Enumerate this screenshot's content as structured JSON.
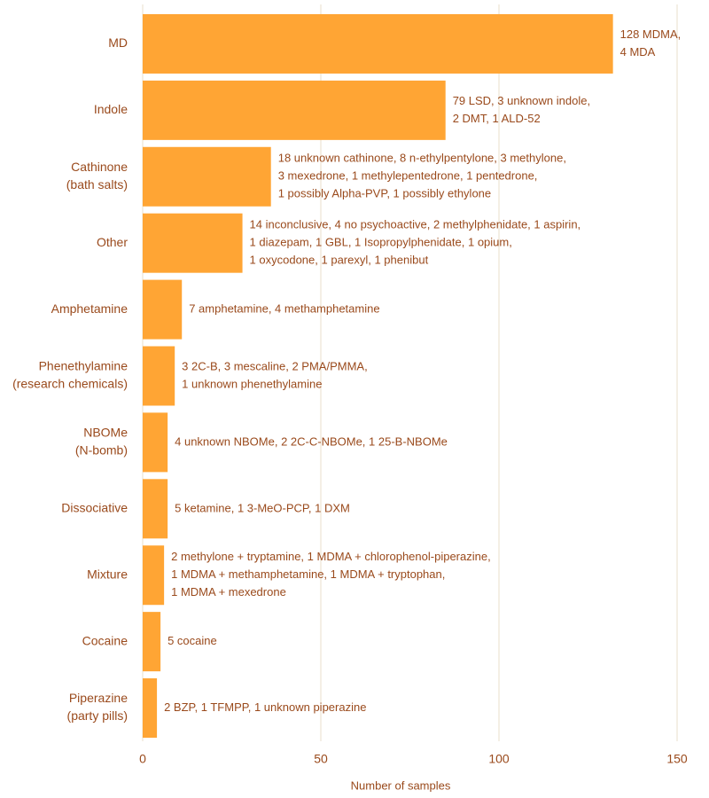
{
  "chart_data": {
    "type": "bar",
    "orientation": "horizontal",
    "x_label": "Number of samples",
    "categories": [
      [
        "MD"
      ],
      [
        "Indole"
      ],
      [
        "Cathinone",
        "(bath salts)"
      ],
      [
        "Other"
      ],
      [
        "Amphetamine"
      ],
      [
        "Phenethylamine",
        "(research chemicals)"
      ],
      [
        "NBOMe",
        "(N-bomb)"
      ],
      [
        "Dissociative"
      ],
      [
        "Mixture"
      ],
      [
        "Cocaine"
      ],
      [
        "Piperazine",
        "(party pills)"
      ]
    ],
    "values": [
      132,
      85,
      36,
      28,
      11,
      9,
      7,
      7,
      6,
      5,
      4
    ],
    "annotations": [
      [
        "128 MDMA,",
        "4 MDA"
      ],
      [
        "79 LSD, 3 unknown indole,",
        "2 DMT, 1 ALD-52"
      ],
      [
        "18 unknown cathinone, 8 n-ethylpentylone, 3 methylone,",
        "3 mexedrone, 1 methylepentedrone, 1 pentedrone,",
        "1 possibly Alpha-PVP, 1 possibly ethylone"
      ],
      [
        "14 inconclusive, 4 no psychoactive, 2 methylphenidate, 1 aspirin,",
        "1 diazepam, 1 GBL, 1 Isopropylphenidate, 1 opium,",
        "1 oxycodone, 1 parexyl, 1 phenibut"
      ],
      [
        "7 amphetamine, 4 methamphetamine"
      ],
      [
        "3 2C-B, 3 mescaline, 2 PMA/PMMA,",
        "1 unknown phenethylamine"
      ],
      [
        "4 unknown NBOMe, 2 2C-C-NBOMe, 1 25-B-NBOMe"
      ],
      [
        "5 ketamine, 1 3-MeO-PCP, 1 DXM"
      ],
      [
        "2 methylone + tryptamine, 1 MDMA + chlorophenol-piperazine,",
        "1 MDMA + methamphetamine, 1 MDMA + tryptophan,",
        "1 MDMA + mexedrone"
      ],
      [
        "5 cocaine"
      ],
      [
        "2 BZP, 1 TFMPP, 1 unknown piperazine"
      ]
    ],
    "color": "#ffa534",
    "xlim": [
      0,
      150
    ],
    "xticks": [
      0,
      50,
      100,
      150
    ],
    "grid": true
  }
}
